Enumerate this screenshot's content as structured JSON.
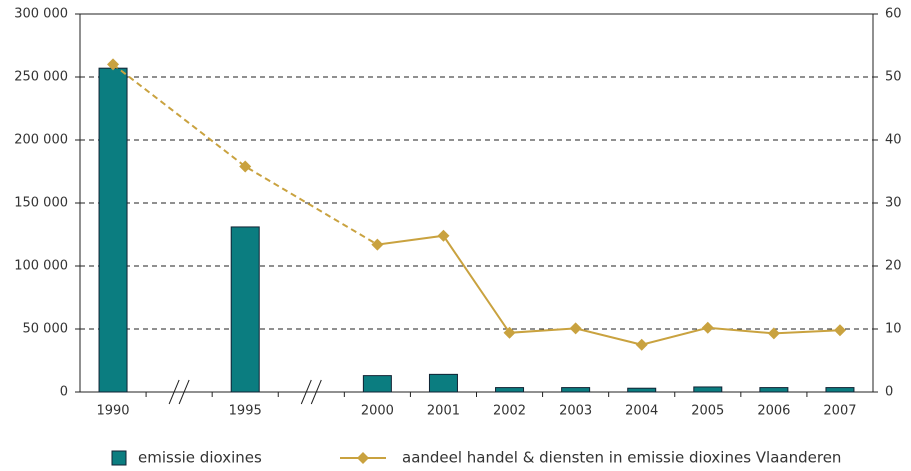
{
  "chart_data": {
    "type": "bar",
    "categories": [
      "1990",
      "1995",
      "2000",
      "2001",
      "2002",
      "2003",
      "2004",
      "2005",
      "2006",
      "2007"
    ],
    "series": [
      {
        "name": "emissie dioxines",
        "type": "bar",
        "color": "#0b7d80",
        "values": [
          257000,
          131000,
          13000,
          14000,
          3500,
          3500,
          3000,
          4000,
          3500,
          3500
        ]
      },
      {
        "name": "aandeel handel & diensten in emissie dioxines Vlaanderen",
        "type": "line",
        "axis": "y2",
        "color": "#c9a23f",
        "values": [
          52,
          35.8,
          23.4,
          24.8,
          9.4,
          10.1,
          7.5,
          10.2,
          9.3,
          9.8
        ]
      }
    ],
    "ylim": [
      0,
      300000
    ],
    "yticks": [
      0,
      {
        "value": 50000,
        "label": "50 000"
      },
      {
        "value": 100000,
        "label": "100 000"
      },
      {
        "value": 150000,
        "label": "150 000"
      },
      {
        "value": 200000,
        "label": "200 000"
      },
      {
        "value": 250000,
        "label": "250 000"
      },
      {
        "value": 300000,
        "label": "300 000"
      }
    ],
    "y2lim": [
      0,
      60
    ],
    "y2ticks": [
      0,
      10,
      20,
      30,
      40,
      50,
      60
    ],
    "grid": true,
    "legend": "bottom"
  }
}
